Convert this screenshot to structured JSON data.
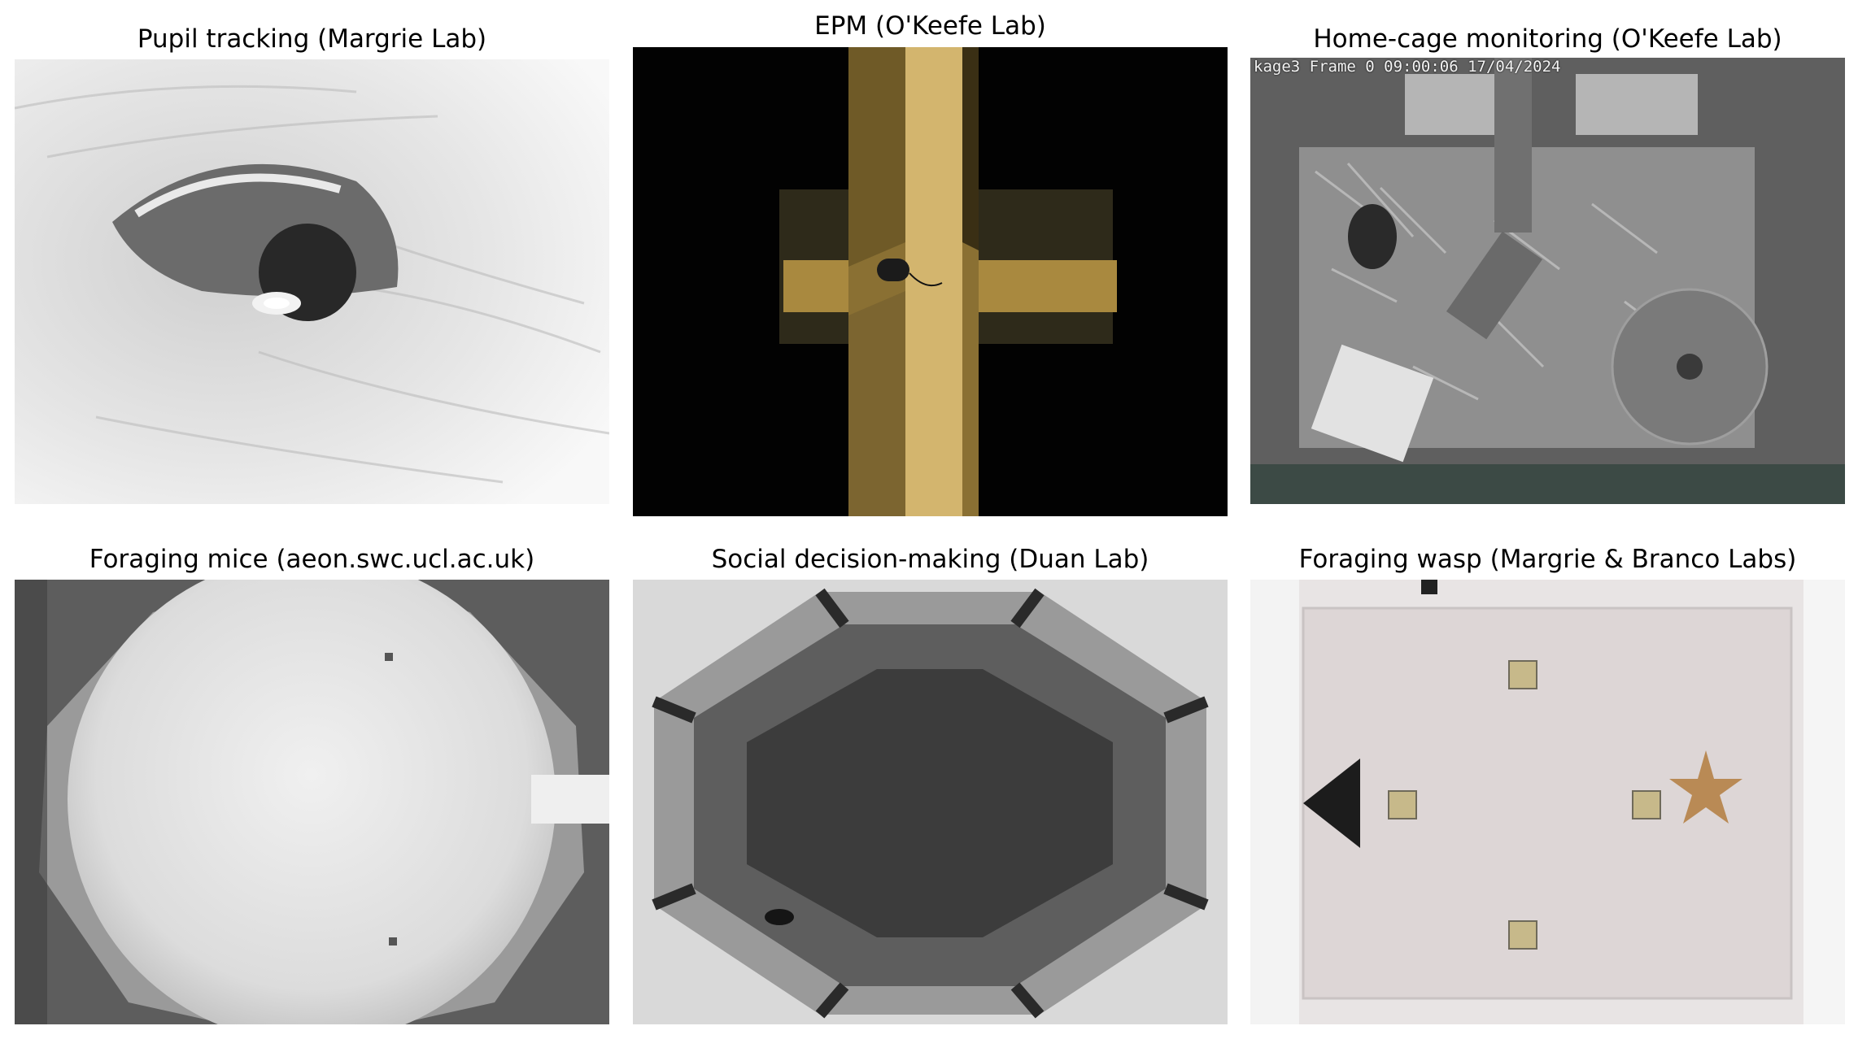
{
  "panels": [
    {
      "title": "Pupil tracking (Margrie Lab)"
    },
    {
      "title": "EPM (O'Keefe Lab)"
    },
    {
      "title": "Home-cage monitoring (O'Keefe Lab)",
      "overlay": "kage3 Frame 0 09:00:06 17/04/2024"
    },
    {
      "title": "Foraging mice (aeon.swc.ucl.ac.uk)"
    },
    {
      "title": "Social decision-making (Duan Lab)"
    },
    {
      "title": "Foraging wasp (Margrie & Branco Labs)"
    }
  ],
  "colors": {
    "background": "#ffffff",
    "epm_wood": "#a9893f",
    "star": "#b98a55"
  }
}
